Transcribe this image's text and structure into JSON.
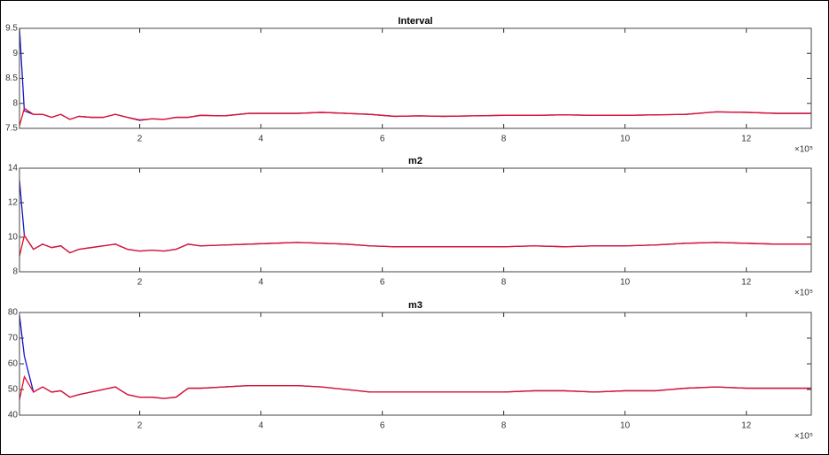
{
  "chart_data": [
    {
      "type": "line",
      "title": "Interval",
      "x_multiplier": "×10⁵",
      "x": [
        0.02,
        0.1,
        0.25,
        0.4,
        0.55,
        0.7,
        0.85,
        1.0,
        1.2,
        1.4,
        1.6,
        1.8,
        2.0,
        2.2,
        2.4,
        2.6,
        2.8,
        3.0,
        3.4,
        3.8,
        4.2,
        4.6,
        5.0,
        5.4,
        5.8,
        6.2,
        6.6,
        7.0,
        7.5,
        8.0,
        8.5,
        9.0,
        9.5,
        10.0,
        10.5,
        11.0,
        11.5,
        12.0,
        12.5,
        13.07
      ],
      "series": [
        {
          "color": "#1414c8",
          "values": [
            9.5,
            7.85,
            7.78,
            7.78,
            7.72,
            7.78,
            7.68,
            7.74,
            7.72,
            7.72,
            7.78,
            7.72,
            7.66,
            7.69,
            7.68,
            7.72,
            7.72,
            7.76,
            7.75,
            7.8,
            7.8,
            7.8,
            7.82,
            7.8,
            7.78,
            7.74,
            7.75,
            7.74,
            7.75,
            7.76,
            7.76,
            7.77,
            7.76,
            7.76,
            7.77,
            7.78,
            7.83,
            7.82,
            7.8,
            7.8
          ]
        },
        {
          "color": "#e8102a",
          "values": [
            7.55,
            7.9,
            7.78,
            7.78,
            7.72,
            7.78,
            7.68,
            7.74,
            7.72,
            7.72,
            7.78,
            7.72,
            7.67,
            7.69,
            7.68,
            7.72,
            7.72,
            7.76,
            7.75,
            7.8,
            7.8,
            7.8,
            7.82,
            7.8,
            7.78,
            7.74,
            7.75,
            7.74,
            7.75,
            7.76,
            7.76,
            7.77,
            7.76,
            7.76,
            7.77,
            7.78,
            7.83,
            7.82,
            7.8,
            7.8
          ]
        }
      ],
      "xlim": [
        0.02,
        13.07
      ],
      "xticks": [
        2,
        4,
        6,
        8,
        10,
        12
      ],
      "ylim": [
        7.5,
        9.5
      ],
      "yticks": [
        7.5,
        8,
        8.5,
        9,
        9.5
      ]
    },
    {
      "type": "line",
      "title": "m2",
      "x_multiplier": "×10⁵",
      "x": [
        0.02,
        0.1,
        0.25,
        0.4,
        0.55,
        0.7,
        0.85,
        1.0,
        1.2,
        1.4,
        1.6,
        1.8,
        2.0,
        2.2,
        2.4,
        2.6,
        2.8,
        3.0,
        3.4,
        3.8,
        4.2,
        4.6,
        5.0,
        5.4,
        5.8,
        6.2,
        6.6,
        7.0,
        7.5,
        8.0,
        8.5,
        9.0,
        9.5,
        10.0,
        10.5,
        11.0,
        11.5,
        12.0,
        12.5,
        13.07
      ],
      "series": [
        {
          "color": "#1414c8",
          "values": [
            13.3,
            10.1,
            9.3,
            9.6,
            9.4,
            9.5,
            9.1,
            9.3,
            9.4,
            9.5,
            9.6,
            9.3,
            9.2,
            9.25,
            9.2,
            9.3,
            9.6,
            9.5,
            9.55,
            9.6,
            9.65,
            9.7,
            9.65,
            9.6,
            9.5,
            9.45,
            9.45,
            9.45,
            9.45,
            9.45,
            9.5,
            9.45,
            9.5,
            9.5,
            9.55,
            9.65,
            9.7,
            9.65,
            9.6,
            9.6
          ]
        },
        {
          "color": "#e8102a",
          "values": [
            8.9,
            10.1,
            9.3,
            9.6,
            9.4,
            9.5,
            9.1,
            9.3,
            9.4,
            9.5,
            9.6,
            9.3,
            9.2,
            9.25,
            9.2,
            9.3,
            9.6,
            9.5,
            9.55,
            9.6,
            9.65,
            9.7,
            9.65,
            9.6,
            9.5,
            9.45,
            9.45,
            9.45,
            9.45,
            9.45,
            9.5,
            9.45,
            9.5,
            9.5,
            9.55,
            9.65,
            9.7,
            9.65,
            9.6,
            9.6
          ]
        }
      ],
      "xlim": [
        0.02,
        13.07
      ],
      "xticks": [
        2,
        4,
        6,
        8,
        10,
        12
      ],
      "ylim": [
        8,
        14
      ],
      "yticks": [
        8,
        10,
        12,
        14
      ]
    },
    {
      "type": "line",
      "title": "m3",
      "x_multiplier": "×10⁵",
      "x": [
        0.02,
        0.1,
        0.25,
        0.4,
        0.55,
        0.7,
        0.85,
        1.0,
        1.2,
        1.4,
        1.6,
        1.8,
        2.0,
        2.2,
        2.4,
        2.6,
        2.8,
        3.0,
        3.4,
        3.8,
        4.2,
        4.6,
        5.0,
        5.4,
        5.8,
        6.2,
        6.6,
        7.0,
        7.5,
        8.0,
        8.5,
        9.0,
        9.5,
        10.0,
        10.5,
        11.0,
        11.5,
        12.0,
        12.5,
        13.07
      ],
      "series": [
        {
          "color": "#1414c8",
          "values": [
            79,
            63,
            49,
            51,
            49,
            49.5,
            47,
            48,
            49,
            50,
            51,
            48,
            47,
            47,
            46.5,
            47,
            50.5,
            50.5,
            51,
            51.5,
            51.5,
            51.5,
            51,
            50,
            49,
            49,
            49,
            49,
            49,
            49,
            49.5,
            49.5,
            49,
            49.5,
            49.5,
            50.5,
            51,
            50.5,
            50.5,
            50.5
          ]
        },
        {
          "color": "#e8102a",
          "values": [
            46,
            55,
            49,
            51,
            49,
            49.5,
            47,
            48,
            49,
            50,
            51,
            48,
            47,
            47,
            46.5,
            47,
            50.5,
            50.5,
            51,
            51.5,
            51.5,
            51.5,
            51,
            50,
            49,
            49,
            49,
            49,
            49,
            49,
            49.5,
            49.5,
            49,
            49.5,
            49.5,
            50.5,
            51,
            50.5,
            50.5,
            50.5
          ]
        }
      ],
      "xlim": [
        0.02,
        13.07
      ],
      "xticks": [
        2,
        4,
        6,
        8,
        10,
        12
      ],
      "ylim": [
        40,
        80
      ],
      "yticks": [
        40,
        50,
        60,
        70,
        80
      ]
    }
  ]
}
